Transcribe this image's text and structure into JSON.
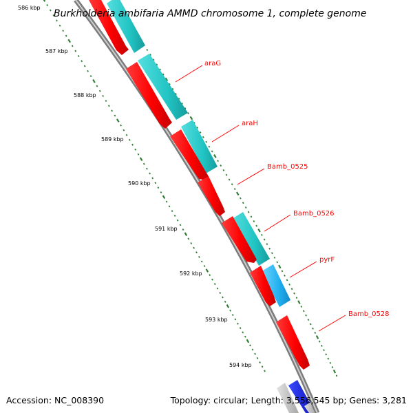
{
  "map": {
    "title": "Burkholderia ambifaria AMMD chromosome 1, complete genome",
    "accession_text": "Accession: NC_008390",
    "summary_text": "Topology: circular; Length: 3,556,545 bp; Genes: 3,281"
  },
  "scale_ticks": [
    {
      "label": "586 kbp",
      "kbp": 586
    },
    {
      "label": "587 kbp",
      "kbp": 587
    },
    {
      "label": "588 kbp",
      "kbp": 588
    },
    {
      "label": "589 kbp",
      "kbp": 589
    },
    {
      "label": "590 kbp",
      "kbp": 590
    },
    {
      "label": "591 kbp",
      "kbp": 591
    },
    {
      "label": "592 kbp",
      "kbp": 592
    },
    {
      "label": "593 kbp",
      "kbp": 593
    },
    {
      "label": "594 kbp",
      "kbp": 594
    }
  ],
  "gene_labels": [
    {
      "label": "araG"
    },
    {
      "label": "araH"
    },
    {
      "label": "Bamb_0525"
    },
    {
      "label": "Bamb_0526"
    },
    {
      "label": "pyrF"
    },
    {
      "label": "Bamb_0528"
    }
  ],
  "colors": {
    "backbone": "#999999",
    "tick_mark": "#2e7d32",
    "cds_feature": "#ff0000",
    "gene_label": "#ff0000",
    "leader_line": "#ff0000",
    "blast_hit_teal": "#33cccc",
    "blast_hit_skyblue": "#33bbf5",
    "blast_hit_grey": "#bbbbbb",
    "blast_hit_blue": "#1122ee"
  }
}
